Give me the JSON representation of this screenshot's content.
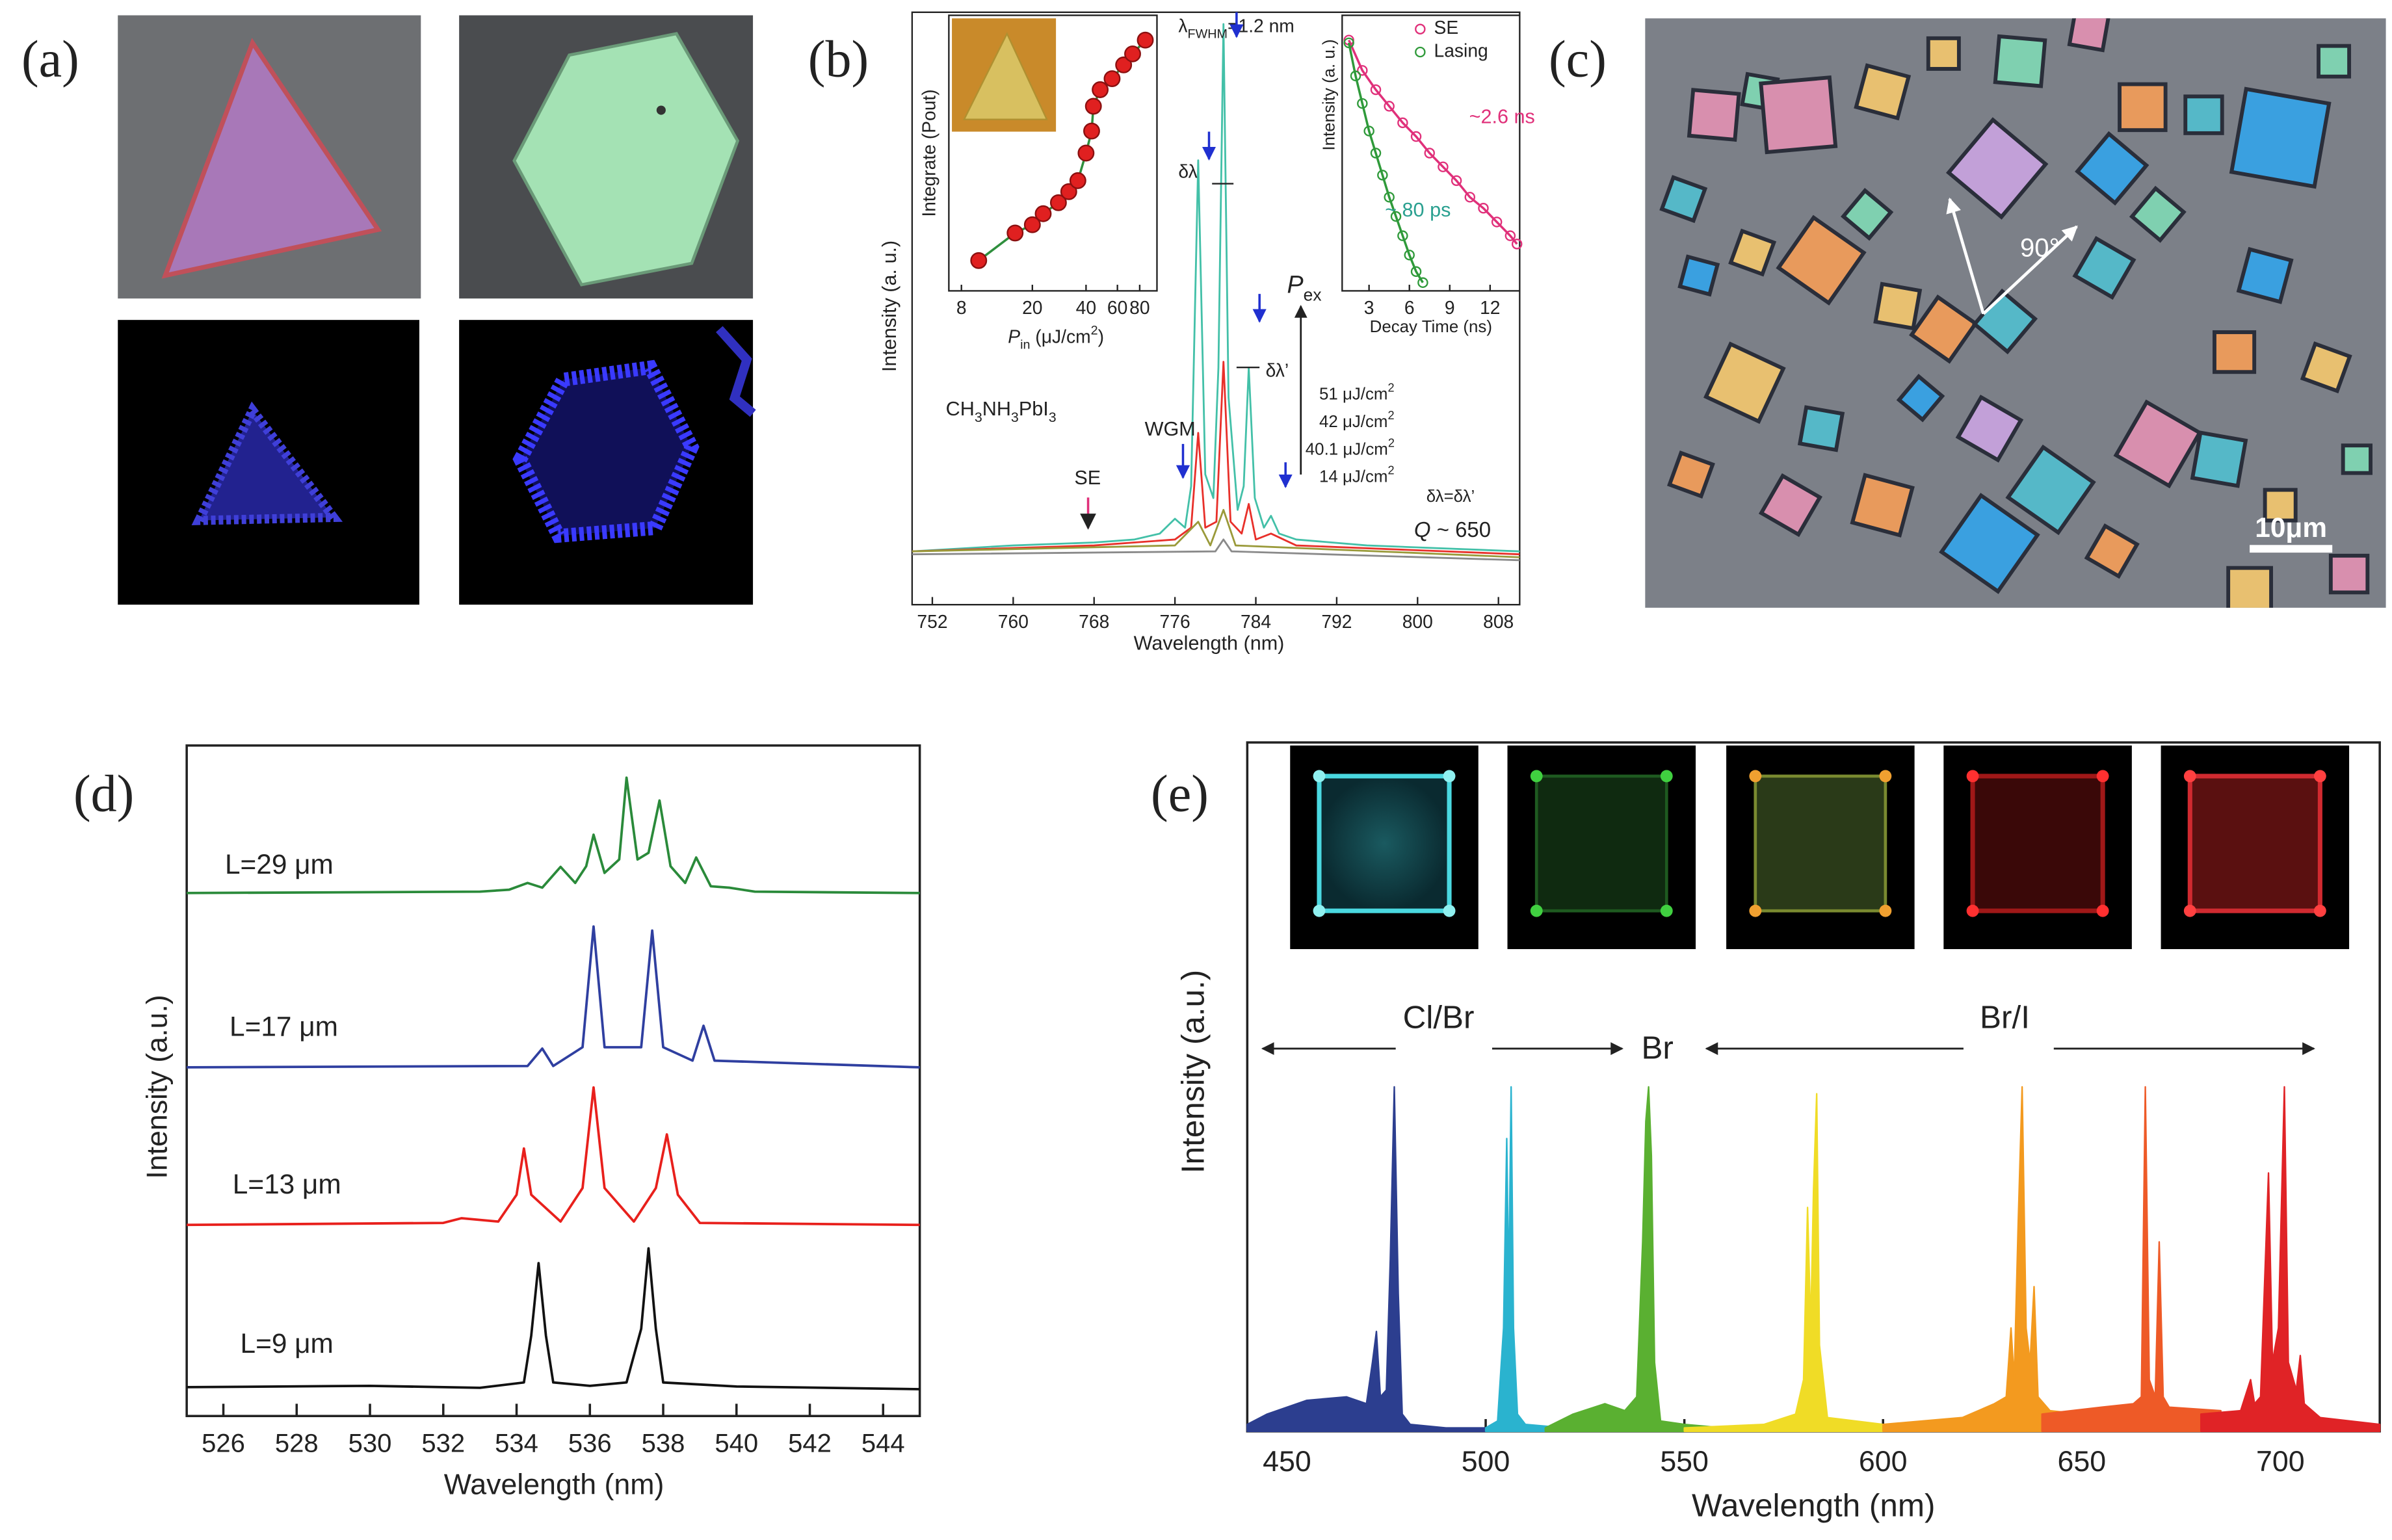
{
  "panel_labels": [
    "(a)",
    "(b)",
    "(c)",
    "(d)",
    "(e)"
  ],
  "panel_c": {
    "scale_bar": "10μm",
    "angle": "90°"
  },
  "chart_data": [
    {
      "type": "line",
      "xlabel": "Wavelength (nm)",
      "ylabel": "Intensity (a. u.)",
      "xlim": [
        750,
        810.1
      ],
      "xticks": [
        752,
        760,
        768,
        776,
        784,
        792,
        800,
        808
      ],
      "ylim": [
        0,
        10
      ],
      "series": [
        {
          "color": "#43c0a8",
          "x": [
            750,
            760,
            768,
            772,
            774.5,
            776,
            777,
            777.6,
            778.3,
            779.0,
            779.8,
            780.3,
            780.8,
            781.3,
            782.2,
            782.8,
            783.3,
            783.9,
            784.8,
            785.5,
            786.3,
            788,
            795,
            810.1
          ],
          "values": [
            0.9,
            1.0,
            1.05,
            1.1,
            1.2,
            1.45,
            1.3,
            2,
            7.5,
            2.2,
            1.8,
            4,
            9.8,
            3.5,
            1.6,
            2,
            4.0,
            1.8,
            1.3,
            1.5,
            1.2,
            1.1,
            1.0,
            0.9
          ]
        },
        {
          "color": "#e8302a",
          "x": [
            750,
            768,
            776,
            777.6,
            778.3,
            779.0,
            780.1,
            780.8,
            781.5,
            782.6,
            783.3,
            784.0,
            785.5,
            788,
            810.1
          ],
          "values": [
            0.9,
            1.0,
            1.1,
            1.3,
            2.9,
            1.3,
            1.4,
            4.1,
            1.4,
            1.2,
            1.7,
            1.1,
            1.2,
            1.0,
            0.85
          ]
        },
        {
          "color": "#9a9a3a",
          "x": [
            750,
            776,
            778.3,
            779.5,
            780.8,
            782,
            810.1
          ],
          "values": [
            0.9,
            1.0,
            1.4,
            1.0,
            1.6,
            1.0,
            0.8
          ]
        },
        {
          "color": "#8a8a8a",
          "x": [
            750,
            780,
            780.8,
            781.6,
            810.1
          ],
          "values": [
            0.85,
            0.9,
            1.1,
            0.9,
            0.75
          ]
        }
      ],
      "annotations": [
        [
          {
            "t": "λ"
          },
          {
            "sub": "FWHM"
          },
          {
            "t": "=1.2 nm"
          }
        ],
        "δλ",
        "δλ’",
        [
          {
            "i": "P"
          },
          {
            "sub": "ex"
          }
        ],
        [
          {
            "t": "51 μJ/cm"
          },
          {
            "sup": "2"
          }
        ],
        [
          {
            "t": "42 μJ/cm"
          },
          {
            "sup": "2"
          }
        ],
        [
          {
            "t": "40.1 μJ/cm"
          },
          {
            "sup": "2"
          }
        ],
        [
          {
            "t": "14 μJ/cm"
          },
          {
            "sup": "2"
          }
        ],
        [
          {
            "t": "CH"
          },
          {
            "sub": "3"
          },
          {
            "t": "NH"
          },
          {
            "sub": "3"
          },
          {
            "t": "PbI"
          },
          {
            "sub": "3"
          }
        ],
        "WGM",
        "SE",
        "δλ=δλ’",
        [
          {
            "i": "Q"
          },
          {
            "t": " ~ 650"
          }
        ]
      ]
    },
    {
      "type": "scatter",
      "xlabel": [
        {
          "i": "P"
        },
        {
          "sub": "in"
        },
        {
          "t": " (μJ/cm"
        },
        {
          "sup": "2"
        },
        {
          "t": ")"
        }
      ],
      "ylabel": "Integrate (Pout)",
      "xscale": "log",
      "xlim": [
        6.8,
        100
      ],
      "xticks": [
        8,
        20,
        40,
        60,
        80
      ],
      "ylim": [
        0,
        10
      ],
      "marker": "filled",
      "fit": true,
      "fit_color": "#2f8f3e",
      "series": [
        {
          "color": "#e02020",
          "x": [
            10,
            16,
            20,
            23,
            28,
            32,
            36,
            40,
            43,
            44,
            48,
            56,
            65,
            73,
            86
          ],
          "values": [
            1.1,
            2.1,
            2.4,
            2.8,
            3.2,
            3.6,
            4.0,
            5.0,
            5.8,
            6.7,
            7.3,
            7.7,
            8.2,
            8.6,
            9.1
          ]
        }
      ]
    },
    {
      "type": "scatter",
      "xlabel": "Decay Time (ns)",
      "ylabel": "Intensity (a. u.)",
      "xlim": [
        1,
        14.2
      ],
      "xticks": [
        3,
        6,
        9,
        12
      ],
      "ylim": [
        0,
        10
      ],
      "marker": "open",
      "fit": true,
      "legend": "upper right",
      "series": [
        {
          "name": "SE",
          "color": "#e0307a",
          "x": [
            1.5,
            2.5,
            3.5,
            4.5,
            5.5,
            6.5,
            7.5,
            8.5,
            9.5,
            10.5,
            11.5,
            12.5,
            13.5,
            14.0
          ],
          "values": [
            9.1,
            8.0,
            7.3,
            6.7,
            6.1,
            5.6,
            5.0,
            4.5,
            4.0,
            3.4,
            3.0,
            2.5,
            2.0,
            1.7
          ]
        },
        {
          "name": "Lasing",
          "color": "#2f9a3a",
          "x": [
            1.5,
            2.0,
            2.5,
            3.0,
            3.5,
            4.0,
            4.5,
            5.0,
            5.5,
            6.0,
            6.5,
            7.0
          ],
          "values": [
            9.0,
            7.8,
            6.8,
            5.8,
            5.0,
            4.2,
            3.4,
            2.7,
            2.0,
            1.3,
            0.7,
            0.3
          ]
        }
      ],
      "annotations": [
        "~2.6 ns",
        "~ 80 ps"
      ]
    },
    {
      "type": "line",
      "xlabel": "Wavelength (nm)",
      "ylabel": "Intensity (a.u.)",
      "xlim": [
        525,
        545
      ],
      "xticks": [
        526,
        528,
        530,
        532,
        534,
        536,
        538,
        540,
        542,
        544
      ],
      "ylim": [
        0,
        10
      ],
      "series": [
        {
          "name": "L=29 μm",
          "color": "#2a8a3a",
          "x": [
            525,
            533,
            533.8,
            534.3,
            534.7,
            535.2,
            535.6,
            535.9,
            536.1,
            536.4,
            536.8,
            537.0,
            537.3,
            537.6,
            537.9,
            538.2,
            538.6,
            538.9,
            539.3,
            539.8,
            540.5,
            545
          ],
          "values": [
            7.8,
            7.82,
            7.85,
            7.95,
            7.88,
            8.19,
            7.95,
            8.2,
            8.67,
            8.1,
            8.3,
            9.52,
            8.3,
            8.4,
            9.18,
            8.2,
            7.95,
            8.33,
            7.9,
            7.88,
            7.82,
            7.8
          ]
        },
        {
          "name": "L=17 μm",
          "color": "#2f3fa0",
          "x": [
            525,
            534.3,
            534.7,
            535.0,
            535.8,
            536.1,
            536.4,
            537.4,
            537.7,
            538.0,
            538.8,
            539.1,
            539.4,
            545
          ],
          "values": [
            5.2,
            5.22,
            5.48,
            5.22,
            5.5,
            7.3,
            5.5,
            5.5,
            7.24,
            5.5,
            5.3,
            5.82,
            5.3,
            5.2
          ]
        },
        {
          "name": "L=13 μm",
          "color": "#e8201c",
          "x": [
            525,
            532,
            532.5,
            533.5,
            534.0,
            534.2,
            534.4,
            535.2,
            535.8,
            536.1,
            536.4,
            537.2,
            537.8,
            538.1,
            538.4,
            539,
            545
          ],
          "values": [
            2.85,
            2.88,
            2.95,
            2.9,
            3.3,
            3.99,
            3.3,
            2.9,
            3.4,
            4.9,
            3.4,
            2.9,
            3.4,
            4.2,
            3.3,
            2.88,
            2.85
          ]
        },
        {
          "name": "L=9 μm",
          "color": "#111111",
          "x": [
            525,
            530,
            533,
            534.2,
            534.4,
            534.6,
            534.8,
            535.0,
            536,
            537.0,
            537.4,
            537.6,
            537.8,
            538.0,
            540,
            545
          ],
          "values": [
            0.43,
            0.45,
            0.42,
            0.5,
            1.2,
            2.28,
            1.2,
            0.5,
            0.45,
            0.5,
            1.3,
            2.5,
            1.3,
            0.5,
            0.44,
            0.4
          ]
        }
      ]
    },
    {
      "type": "area",
      "xlabel": "Wavelength (nm)",
      "ylabel": "Intensity (a.u.)",
      "xlim": [
        440,
        725
      ],
      "xticks": [
        450,
        500,
        550,
        600,
        650,
        700
      ],
      "ylim": [
        0,
        2
      ],
      "series": [
        {
          "color": "#2c3e8f",
          "x": [
            440,
            445,
            455,
            465,
            470,
            471.5,
            472.5,
            473.5,
            475,
            476,
            477,
            478,
            479,
            481,
            490,
            500
          ],
          "values": [
            0.02,
            0.05,
            0.09,
            0.1,
            0.08,
            0.2,
            0.29,
            0.1,
            0.12,
            0.5,
            1.0,
            0.4,
            0.05,
            0.02,
            0.01,
            0.01
          ]
        },
        {
          "color": "#2ab3cf",
          "x": [
            500,
            503,
            504.5,
            505.3,
            505.8,
            506.4,
            507,
            508,
            510,
            520
          ],
          "values": [
            0.01,
            0.03,
            0.3,
            0.85,
            0.4,
            1.0,
            0.3,
            0.05,
            0.02,
            0.01
          ]
        },
        {
          "color": "#5ab031",
          "x": [
            515,
            522,
            530,
            535,
            538,
            539.5,
            540.3,
            541,
            541.7,
            542.5,
            544,
            550,
            560
          ],
          "values": [
            0.01,
            0.05,
            0.08,
            0.06,
            0.1,
            0.55,
            0.9,
            1.0,
            0.8,
            0.2,
            0.03,
            0.02,
            0.01
          ]
        },
        {
          "color": "#f0dc26",
          "x": [
            550,
            570,
            578,
            580,
            581,
            581.8,
            582.5,
            583.3,
            584,
            586,
            600,
            620
          ],
          "values": [
            0.01,
            0.02,
            0.05,
            0.15,
            0.65,
            0.3,
            0.7,
            0.98,
            0.25,
            0.04,
            0.02,
            0.01
          ]
        },
        {
          "color": "#f39a1f",
          "x": [
            600,
            620,
            628,
            631,
            632.2,
            633,
            634,
            635,
            636,
            637,
            638,
            639,
            642,
            650
          ],
          "values": [
            0.02,
            0.04,
            0.08,
            0.1,
            0.3,
            0.15,
            0.6,
            1.0,
            0.3,
            0.2,
            0.42,
            0.1,
            0.06,
            0.05
          ]
        },
        {
          "color": "#ee5a27",
          "x": [
            640,
            655,
            663,
            665,
            666,
            667,
            668.5,
            669.5,
            670.5,
            672,
            685
          ],
          "values": [
            0.05,
            0.07,
            0.08,
            0.1,
            1.0,
            0.15,
            0.1,
            0.55,
            0.1,
            0.07,
            0.06
          ]
        },
        {
          "color": "#e02326",
          "x": [
            680,
            690,
            692.5,
            693.5,
            695,
            697,
            698,
            699.5,
            701,
            702,
            704,
            705,
            706,
            710,
            725
          ],
          "values": [
            0.05,
            0.06,
            0.15,
            0.08,
            0.1,
            0.75,
            0.2,
            0.3,
            1.0,
            0.2,
            0.12,
            0.22,
            0.08,
            0.04,
            0.02
          ]
        }
      ],
      "annotations": [
        "Cl/Br",
        "Br",
        "Br/I"
      ]
    }
  ]
}
